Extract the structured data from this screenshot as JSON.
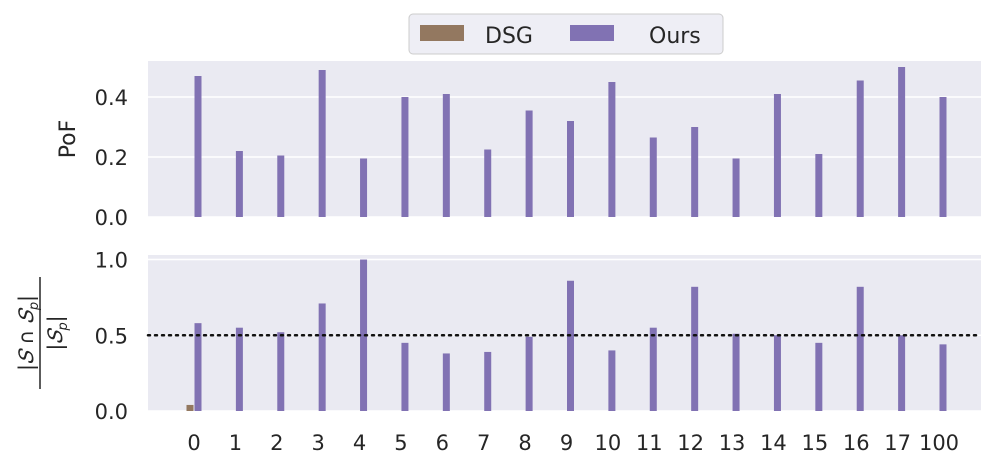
{
  "legend": {
    "entries": [
      {
        "label": "DSG",
        "color": "#937860"
      },
      {
        "label": "Ours",
        "color": "#8172B3"
      }
    ],
    "placement": "top-center"
  },
  "chart_data": [
    {
      "type": "bar",
      "ylabel": "PoF",
      "ylim": [
        0,
        0.52
      ],
      "yticks": [
        "0.0",
        "0.2",
        "0.4"
      ],
      "grid": true,
      "categories": [
        "0",
        "1",
        "2",
        "3",
        "4",
        "5",
        "6",
        "7",
        "8",
        "9",
        "10",
        "11",
        "12",
        "13",
        "14",
        "15",
        "16",
        "17",
        "100"
      ],
      "series": [
        {
          "name": "DSG",
          "color": "#937860",
          "values": [
            0,
            0,
            0,
            0,
            0,
            0,
            0,
            0,
            0,
            0,
            0,
            0,
            0,
            0,
            0,
            0,
            0,
            0,
            0
          ]
        },
        {
          "name": "Ours",
          "color": "#8172B3",
          "values": [
            0.47,
            0.22,
            0.205,
            0.49,
            0.195,
            0.4,
            0.41,
            0.225,
            0.355,
            0.32,
            0.45,
            0.265,
            0.3,
            0.195,
            0.41,
            0.21,
            0.455,
            0.5,
            0.4
          ]
        }
      ]
    },
    {
      "type": "bar",
      "ylabel": "|S ∩ Sp| / |Sp|",
      "ylabel_num": "|𝑆 ∩ 𝑆",
      "ylabel_den": "|𝑆",
      "ylim": [
        0,
        1.03
      ],
      "yticks": [
        "0.0",
        "0.5",
        "1.0"
      ],
      "grid": true,
      "reference_line": {
        "y": 0.5,
        "style": "dotted"
      },
      "categories": [
        "0",
        "1",
        "2",
        "3",
        "4",
        "5",
        "6",
        "7",
        "8",
        "9",
        "10",
        "11",
        "12",
        "13",
        "14",
        "15",
        "16",
        "17",
        "100"
      ],
      "series": [
        {
          "name": "DSG",
          "color": "#937860",
          "values": [
            0.04,
            0,
            0,
            0,
            0,
            0,
            0,
            0,
            0,
            0,
            0,
            0,
            0,
            0,
            0,
            0,
            0,
            0,
            0
          ]
        },
        {
          "name": "Ours",
          "color": "#8172B3",
          "values": [
            0.58,
            0.55,
            0.52,
            0.71,
            1.0,
            0.45,
            0.38,
            0.39,
            0.49,
            0.86,
            0.4,
            0.55,
            0.82,
            0.51,
            0.5,
            0.45,
            0.82,
            0.5,
            0.44
          ]
        }
      ]
    }
  ]
}
